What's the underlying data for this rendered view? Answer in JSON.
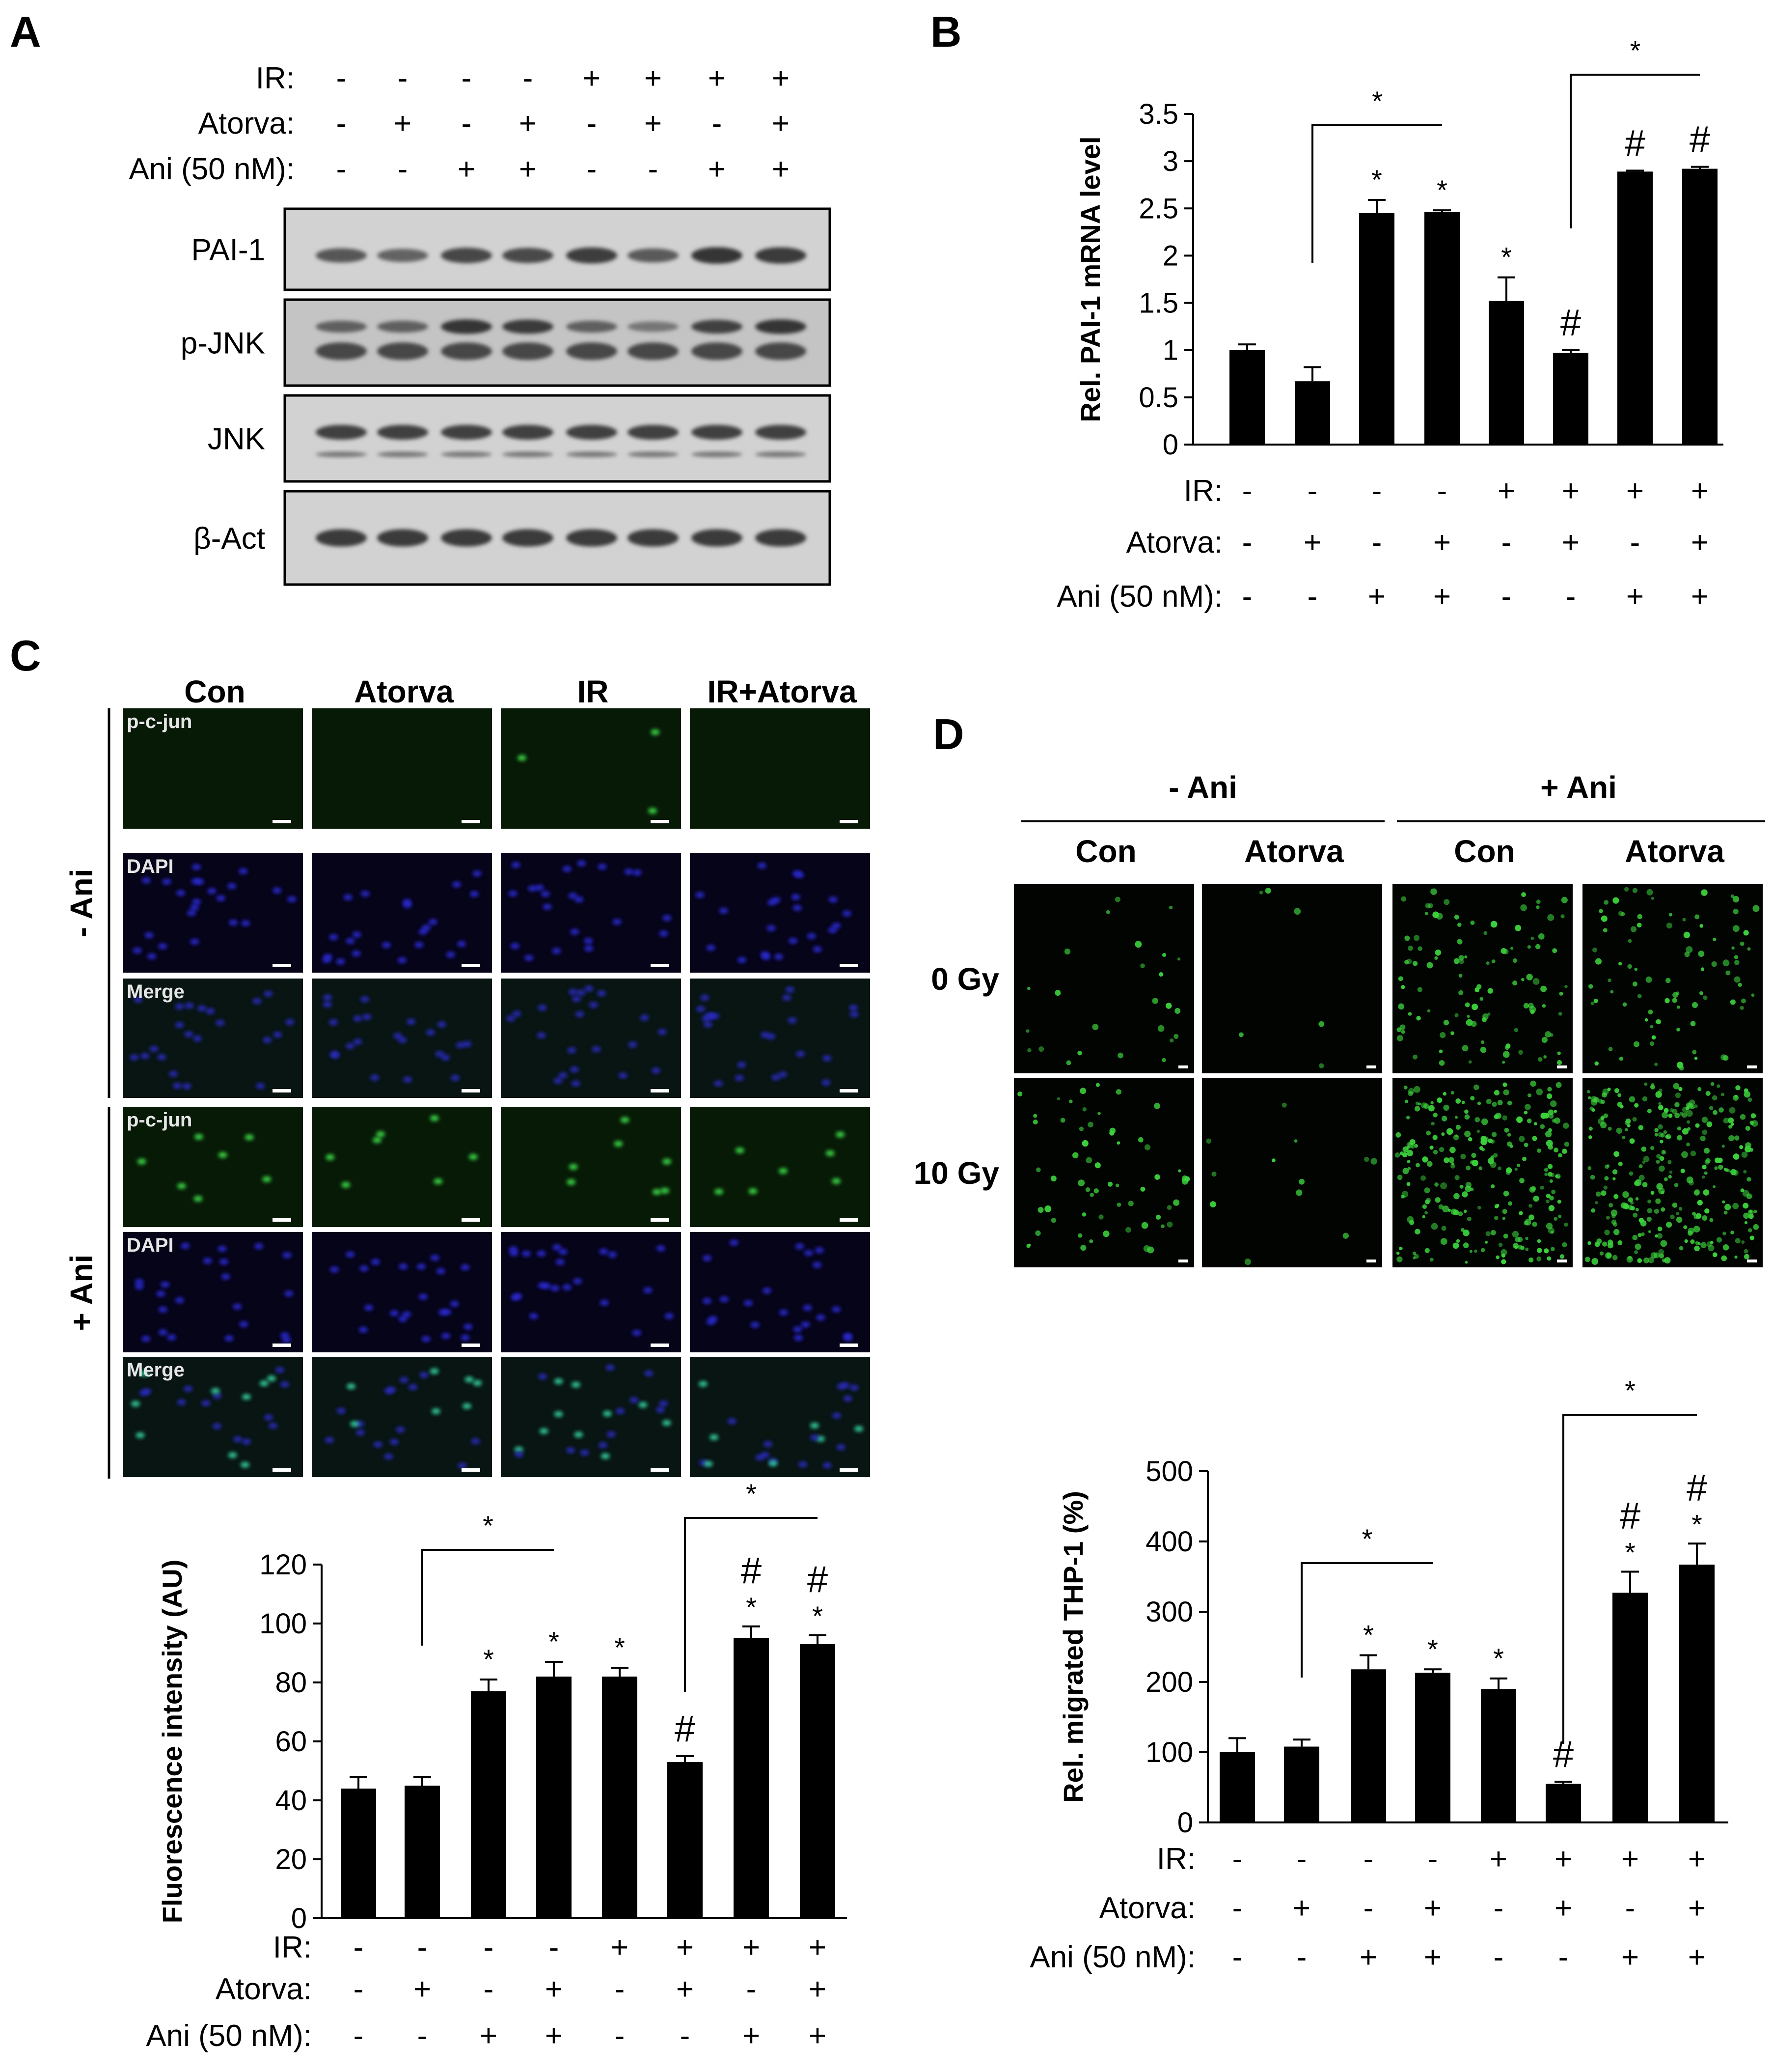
{
  "panel_labels": {
    "a": "A",
    "b": "B",
    "c": "C",
    "d": "D"
  },
  "conditions": {
    "rows": [
      {
        "label": "IR:",
        "values": [
          "-",
          "-",
          "-",
          "-",
          "+",
          "+",
          "+",
          "+"
        ]
      },
      {
        "label": "Atorva:",
        "values": [
          "-",
          "+",
          "-",
          "+",
          "-",
          "+",
          "-",
          "+"
        ]
      },
      {
        "label": "Ani (50 nM):",
        "values": [
          "-",
          "-",
          "+",
          "+",
          "-",
          "-",
          "+",
          "+"
        ]
      }
    ]
  },
  "panel_a": {
    "blots": [
      {
        "label": "PAI-1",
        "intensity": [
          0.62,
          0.5,
          0.75,
          0.72,
          0.82,
          0.58,
          0.88,
          0.85
        ]
      },
      {
        "label": "p-JNK",
        "intensity": [
          0.55,
          0.55,
          0.9,
          0.85,
          0.55,
          0.35,
          0.8,
          0.9
        ]
      },
      {
        "label": "JNK",
        "intensity": [
          0.8,
          0.8,
          0.8,
          0.8,
          0.8,
          0.8,
          0.8,
          0.8
        ]
      },
      {
        "label": "β-Act",
        "intensity": [
          0.85,
          0.85,
          0.85,
          0.85,
          0.85,
          0.85,
          0.85,
          0.85
        ]
      }
    ]
  },
  "panel_c_images": {
    "columns": [
      "Con",
      "Atorva",
      "IR",
      "IR+Atorva"
    ],
    "groups": [
      {
        "label": "- Ani",
        "rows": [
          "p-c-jun",
          "DAPI",
          "Merge"
        ]
      },
      {
        "label": "+ Ani",
        "rows": [
          "p-c-jun",
          "DAPI",
          "Merge"
        ]
      }
    ]
  },
  "panel_d_images": {
    "groups": [
      "- Ani",
      "+ Ani"
    ],
    "columns": [
      "Con",
      "Atorva",
      "Con",
      "Atorva"
    ],
    "rows": [
      "0 Gy",
      "10 Gy"
    ]
  },
  "chart_data": [
    {
      "panel": "B",
      "type": "bar",
      "ylabel": "Rel. PAI-1 mRNA level",
      "ylim": [
        0,
        3.5
      ],
      "yticks": [
        "0",
        "0.5",
        "1",
        "1.5",
        "2",
        "2.5",
        "3",
        "3.5"
      ],
      "values": [
        1.0,
        0.67,
        2.45,
        2.46,
        1.52,
        0.97,
        2.89,
        2.92
      ],
      "errors": [
        0.06,
        0.15,
        0.14,
        0.02,
        0.25,
        0.03,
        0.01,
        0.02
      ],
      "marks": [
        "",
        "",
        "*",
        "*",
        "*",
        "#",
        "#",
        "#"
      ],
      "brackets": [
        {
          "from": 1,
          "to": 3,
          "label": "*"
        },
        {
          "from": 5,
          "to": 7,
          "label": "*"
        }
      ]
    },
    {
      "panel": "C",
      "type": "bar",
      "ylabel": "Fluorescence intensity (AU)",
      "ylim": [
        0,
        120
      ],
      "yticks": [
        "0",
        "20",
        "40",
        "60",
        "80",
        "100",
        "120"
      ],
      "values": [
        44,
        45,
        77,
        82,
        82,
        53,
        95,
        93
      ],
      "errors": [
        4,
        3,
        4,
        5,
        3,
        2,
        4,
        3
      ],
      "marks": [
        "",
        "",
        "*",
        "*",
        "*",
        "#",
        "#*",
        "#*"
      ],
      "brackets": [
        {
          "from": 1,
          "to": 3,
          "label": "*"
        },
        {
          "from": 5,
          "to": 7,
          "label": "*"
        }
      ]
    },
    {
      "panel": "D",
      "type": "bar",
      "ylabel": "Rel. migrated THP-1 (%)",
      "ylim": [
        0,
        500
      ],
      "yticks": [
        "0",
        "100",
        "200",
        "300",
        "400",
        "500"
      ],
      "values": [
        100,
        108,
        218,
        213,
        190,
        55,
        327,
        367
      ],
      "errors": [
        20,
        10,
        20,
        5,
        15,
        3,
        30,
        30
      ],
      "marks": [
        "",
        "",
        "*",
        "*",
        "*",
        "#",
        "#*",
        "#*"
      ],
      "brackets": [
        {
          "from": 1,
          "to": 3,
          "label": "*"
        },
        {
          "from": 5,
          "to": 7,
          "label": "*"
        }
      ]
    }
  ]
}
